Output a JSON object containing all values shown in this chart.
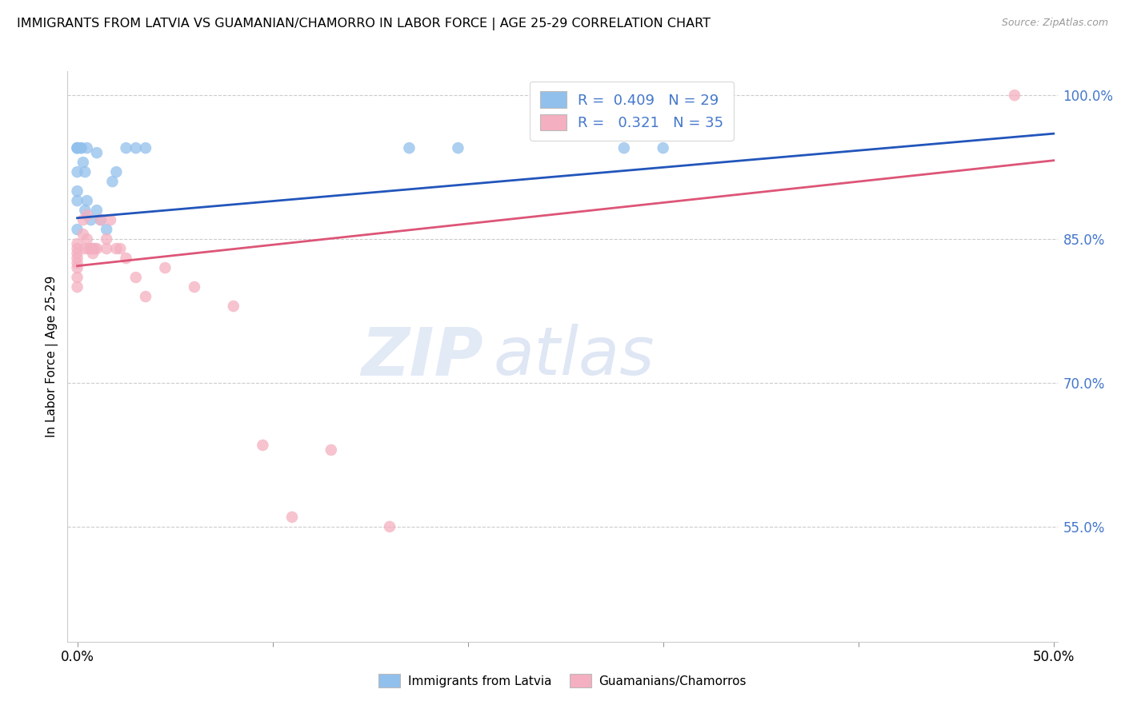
{
  "title": "IMMIGRANTS FROM LATVIA VS GUAMANIAN/CHAMORRO IN LABOR FORCE | AGE 25-29 CORRELATION CHART",
  "source": "Source: ZipAtlas.com",
  "ylabel": "In Labor Force | Age 25-29",
  "xlim": [
    -0.005,
    0.502
  ],
  "ylim": [
    0.43,
    1.025
  ],
  "ytick_vals": [
    0.55,
    0.7,
    0.85,
    1.0
  ],
  "ytick_labels": [
    "55.0%",
    "70.0%",
    "85.0%",
    "100.0%"
  ],
  "xtick_vals": [
    0.0,
    0.1,
    0.2,
    0.3,
    0.4,
    0.5
  ],
  "xtick_labels": [
    "0.0%",
    "",
    "",
    "",
    "",
    "50.0%"
  ],
  "blue_color": "#92c0ec",
  "pink_color": "#f4afc0",
  "line_blue": "#2255bb",
  "line_pink": "#dd5577",
  "watermark_zip": "ZIP",
  "watermark_atlas": "atlas",
  "blue_R": 0.409,
  "blue_N": 29,
  "pink_R": 0.321,
  "pink_N": 35,
  "blue_points_x": [
    0.0,
    0.0,
    0.0,
    0.0,
    0.0,
    0.0,
    0.0,
    0.002,
    0.002,
    0.003,
    0.004,
    0.004,
    0.005,
    0.005,
    0.007,
    0.008,
    0.01,
    0.01,
    0.012,
    0.015,
    0.018,
    0.02,
    0.025,
    0.03,
    0.035,
    0.17,
    0.195,
    0.28,
    0.3
  ],
  "blue_points_y": [
    0.945,
    0.945,
    0.945,
    0.92,
    0.9,
    0.89,
    0.86,
    0.945,
    0.945,
    0.93,
    0.92,
    0.88,
    0.945,
    0.89,
    0.87,
    0.84,
    0.94,
    0.88,
    0.87,
    0.86,
    0.91,
    0.92,
    0.945,
    0.945,
    0.945,
    0.945,
    0.945,
    0.945,
    0.945
  ],
  "pink_points_x": [
    0.0,
    0.0,
    0.0,
    0.0,
    0.0,
    0.0,
    0.0,
    0.0,
    0.003,
    0.003,
    0.004,
    0.005,
    0.005,
    0.006,
    0.007,
    0.008,
    0.009,
    0.01,
    0.012,
    0.015,
    0.015,
    0.017,
    0.02,
    0.022,
    0.025,
    0.03,
    0.035,
    0.045,
    0.06,
    0.08,
    0.095,
    0.11,
    0.13,
    0.16,
    0.48
  ],
  "pink_points_y": [
    0.845,
    0.84,
    0.835,
    0.83,
    0.825,
    0.82,
    0.81,
    0.8,
    0.87,
    0.855,
    0.84,
    0.875,
    0.85,
    0.84,
    0.84,
    0.835,
    0.84,
    0.84,
    0.87,
    0.85,
    0.84,
    0.87,
    0.84,
    0.84,
    0.83,
    0.81,
    0.79,
    0.82,
    0.8,
    0.78,
    0.635,
    0.56,
    0.63,
    0.55,
    1.0
  ]
}
